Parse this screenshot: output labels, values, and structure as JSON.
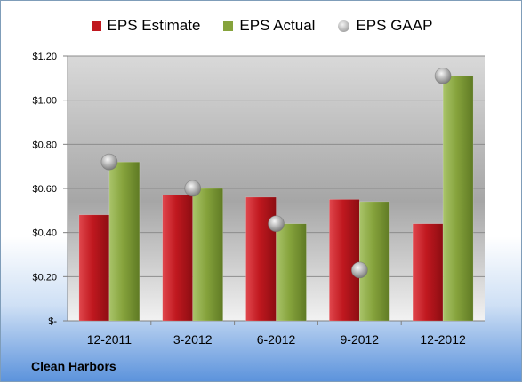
{
  "chart_data": {
    "type": "bar",
    "categories": [
      "12-2011",
      "3-2012",
      "6-2012",
      "9-2012",
      "12-2012"
    ],
    "series": [
      {
        "name": "EPS Estimate",
        "kind": "bar",
        "color": "#c0181f",
        "values": [
          0.48,
          0.57,
          0.56,
          0.55,
          0.44
        ]
      },
      {
        "name": "EPS Actual",
        "kind": "bar",
        "color": "#86a33c",
        "values": [
          0.72,
          0.6,
          0.44,
          0.54,
          1.11
        ]
      },
      {
        "name": "EPS GAAP",
        "kind": "marker",
        "color": "#a8a8a8",
        "values": [
          0.72,
          0.6,
          0.44,
          0.23,
          1.11
        ]
      }
    ],
    "yticks": [
      {
        "value": 0,
        "label": "$-"
      },
      {
        "value": 0.2,
        "label": "$0.20"
      },
      {
        "value": 0.4,
        "label": "$0.40"
      },
      {
        "value": 0.6,
        "label": "$0.60"
      },
      {
        "value": 0.8,
        "label": "$0.80"
      },
      {
        "value": 1.0,
        "label": "$1.00"
      },
      {
        "value": 1.2,
        "label": "$1.20"
      }
    ],
    "ylim": [
      0,
      1.2
    ],
    "grid": true,
    "legend_position": "top"
  },
  "legend": [
    {
      "label": "EPS Estimate",
      "color": "#c0181f"
    },
    {
      "label": "EPS Actual",
      "color": "#86a33c"
    },
    {
      "label": "EPS GAAP",
      "color": "#a8a8a8"
    }
  ],
  "company": "Clean Harbors"
}
